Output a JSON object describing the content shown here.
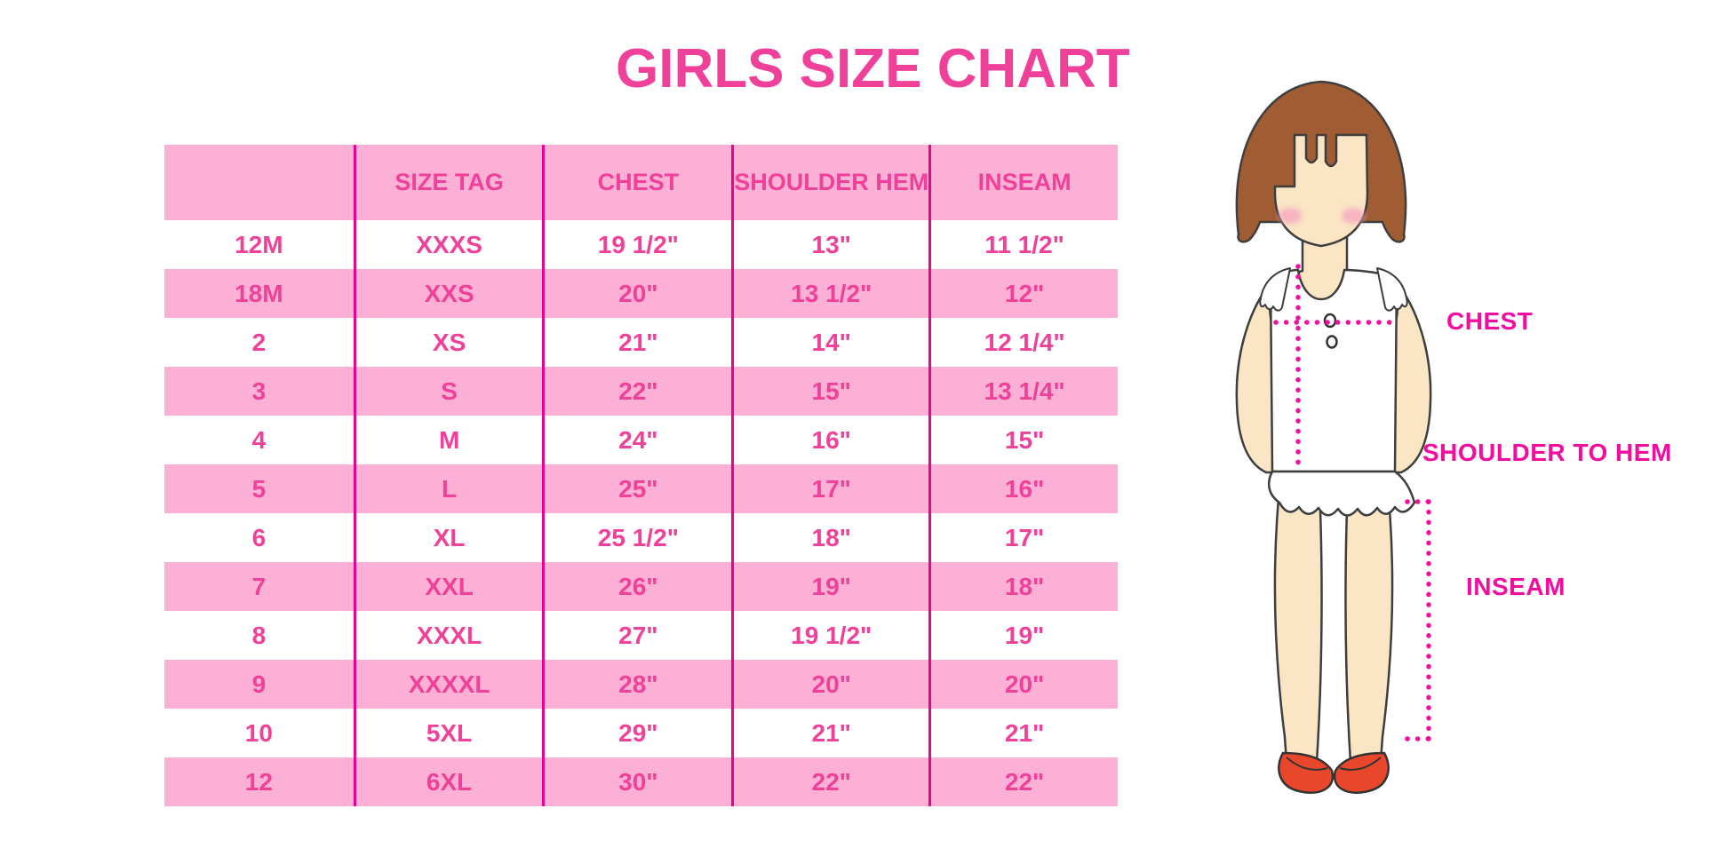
{
  "title": "GIRLS SIZE CHART",
  "chart_data": {
    "type": "table",
    "title": "GIRLS SIZE CHART",
    "columns": [
      "",
      "SIZE TAG",
      "CHEST",
      "SHOULDER HEM",
      "INSEAM"
    ],
    "rows": [
      [
        "12M",
        "XXXS",
        "19 1/2\"",
        "13\"",
        "11 1/2\""
      ],
      [
        "18M",
        "XXS",
        "20\"",
        "13 1/2\"",
        "12\""
      ],
      [
        "2",
        "XS",
        "21\"",
        "14\"",
        "12 1/4\""
      ],
      [
        "3",
        "S",
        "22\"",
        "15\"",
        "13 1/4\""
      ],
      [
        "4",
        "M",
        "24\"",
        "16\"",
        "15\""
      ],
      [
        "5",
        "L",
        "25\"",
        "17\"",
        "16\""
      ],
      [
        "6",
        "XL",
        "25 1/2\"",
        "18\"",
        "17\""
      ],
      [
        "7",
        "XXL",
        "26\"",
        "19\"",
        "18\""
      ],
      [
        "8",
        "XXXL",
        "27\"",
        "19 1/2\"",
        "19\""
      ],
      [
        "9",
        "XXXXL",
        "28\"",
        "20\"",
        "20\""
      ],
      [
        "10",
        "5XL",
        "29\"",
        "21\"",
        "21\""
      ],
      [
        "12",
        "6XL",
        "30\"",
        "22\"",
        "22\""
      ]
    ],
    "layout": {
      "striping": "alternating white and pink rows, pink header",
      "grid": "4 vertical magenta separators, no horizontal lines"
    }
  },
  "figure": {
    "description": "cartoon girl with brown bob hair, white ruffled top, red mary-jane shoes, dotted measurement guides",
    "labels": {
      "chest": "CHEST",
      "shoulder_to_hem": "SHOULDER TO HEM",
      "inseam": "INSEAM"
    }
  },
  "colors": {
    "row_pink": "#FDB0D5",
    "grid_line": "#E60591",
    "text_pink": "#EF4199",
    "label_magenta": "#F30D9E",
    "dotted_line": "#F30DA0",
    "shoe_red": "#E8472B",
    "hair_brown": "#A05C33",
    "skin": "#FAE5C4",
    "background": "#FFFFFF"
  }
}
